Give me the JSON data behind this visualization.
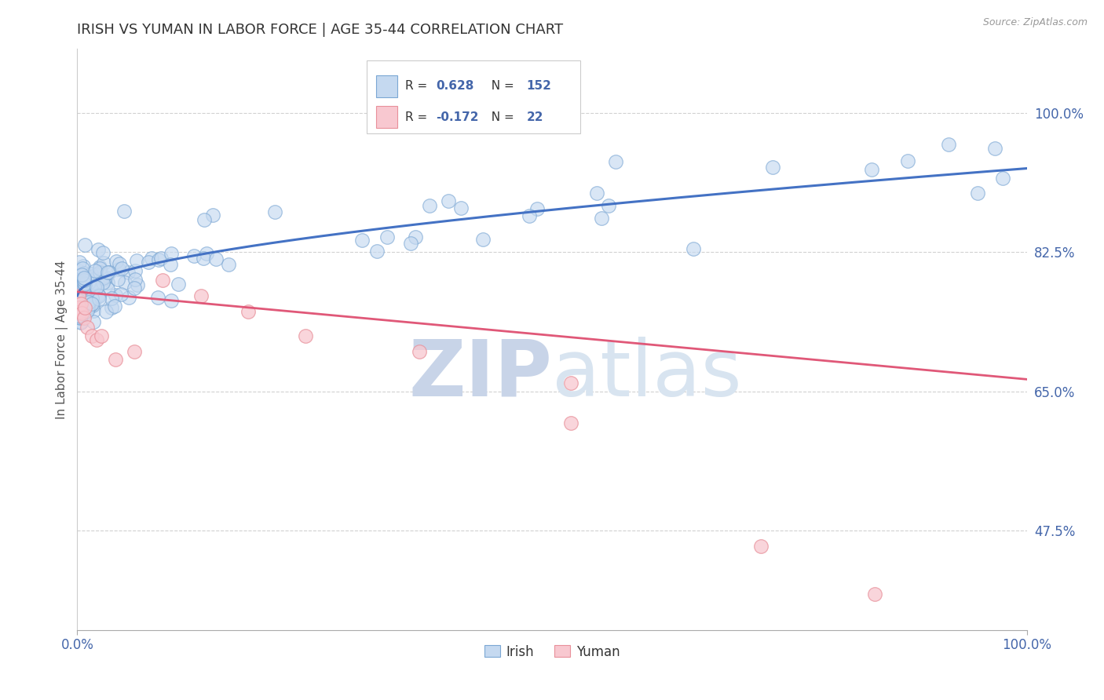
{
  "title": "IRISH VS YUMAN IN LABOR FORCE | AGE 35-44 CORRELATION CHART",
  "source_text": "Source: ZipAtlas.com",
  "ylabel": "In Labor Force | Age 35-44",
  "xlim": [
    0.0,
    1.0
  ],
  "ylim": [
    0.35,
    1.08
  ],
  "yticks": [
    0.475,
    0.65,
    0.825,
    1.0
  ],
  "ytick_labels": [
    "47.5%",
    "65.0%",
    "82.5%",
    "100.0%"
  ],
  "xticks": [
    0.0,
    1.0
  ],
  "xtick_labels": [
    "0.0%",
    "100.0%"
  ],
  "irish_R": 0.628,
  "irish_N": 152,
  "yuman_R": -0.172,
  "yuman_N": 22,
  "irish_scatter_color": "#c5d9f0",
  "irish_edge_color": "#7ba7d4",
  "irish_line_color": "#4472c4",
  "yuman_scatter_color": "#f8c8d0",
  "yuman_edge_color": "#e8909a",
  "yuman_line_color": "#e05878",
  "legend_irish": "Irish",
  "legend_yuman": "Yuman",
  "title_color": "#333333",
  "axis_label_color": "#555555",
  "tick_color": "#4466aa",
  "grid_color": "#cccccc",
  "watermark_zip": "ZIP",
  "watermark_atlas": "atlas",
  "watermark_color": "#dce6f4",
  "background_color": "#ffffff"
}
